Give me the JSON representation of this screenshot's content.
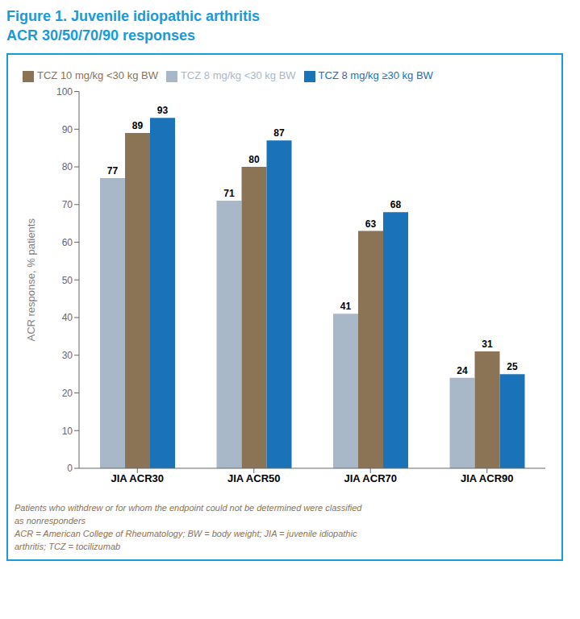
{
  "chart_data": {
    "type": "bar",
    "title": "Figure 1. Juvenile idiopathic arthritis",
    "subtitle": "ACR 30/50/70/90 responses",
    "categories": [
      "JIA ACR30",
      "JIA ACR50",
      "JIA ACR70",
      "JIA ACR90"
    ],
    "series": [
      {
        "name": "TCZ 8 mg/kg <30 kg BW",
        "color": "#a8b8c8",
        "values": [
          77,
          71,
          41,
          24
        ]
      },
      {
        "name": "TCZ 10 mg/kg <30 kg BW",
        "color": "#8b7355",
        "values": [
          89,
          80,
          63,
          31
        ]
      },
      {
        "name": "TCZ 8 mg/kg ≥30 kg BW",
        "color": "#1a72b8",
        "values": [
          93,
          87,
          68,
          25
        ]
      }
    ],
    "ylabel": "ACR response, % patients",
    "ylim": [
      0,
      100
    ],
    "yticks": [
      0,
      10,
      20,
      30,
      40,
      50,
      60,
      70,
      80,
      90,
      100
    ],
    "grid": false,
    "legend": "top",
    "data_labels": true,
    "annotations": [
      "Patients who withdrew or for whom the endpoint could not be determined were classified",
      "as nonresponders",
      "ACR = American College of Rheumatology; BW = body weight; JIA = juvenile idiopathic",
      "arthritis; TCZ = tocilizumab"
    ]
  }
}
